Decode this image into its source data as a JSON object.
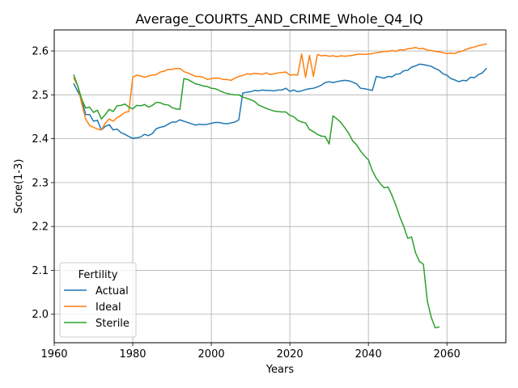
{
  "chart_data": {
    "type": "line",
    "title": "Average_COURTS_AND_CRIME_Whole_Q4_IQ",
    "xlabel": "Years",
    "ylabel": "Score(1-3)",
    "xlim": [
      1960,
      2075
    ],
    "ylim": [
      1.935,
      2.648
    ],
    "xticks": [
      1960,
      1980,
      2000,
      2020,
      2040,
      2060
    ],
    "yticks": [
      2.0,
      2.1,
      2.2,
      2.3,
      2.4,
      2.5,
      2.6
    ],
    "grid": true,
    "legend": {
      "title": "Fertility",
      "placement": "lower-left"
    },
    "series": [
      {
        "name": "Actual",
        "color": "#1f77b4",
        "points": [
          [
            1965,
            2.525
          ],
          [
            1967,
            2.49
          ],
          [
            1968,
            2.455
          ],
          [
            1969,
            2.455
          ],
          [
            1970,
            2.44
          ],
          [
            1971,
            2.442
          ],
          [
            1972,
            2.42
          ],
          [
            1973,
            2.428
          ],
          [
            1974,
            2.432
          ],
          [
            1975,
            2.42
          ],
          [
            1976,
            2.422
          ],
          [
            1977,
            2.414
          ],
          [
            1978,
            2.41
          ],
          [
            1979,
            2.405
          ],
          [
            1980,
            2.401
          ],
          [
            1981,
            2.402
          ],
          [
            1982,
            2.404
          ],
          [
            1983,
            2.41
          ],
          [
            1984,
            2.407
          ],
          [
            1985,
            2.412
          ],
          [
            1986,
            2.423
          ],
          [
            1987,
            2.426
          ],
          [
            1988,
            2.428
          ],
          [
            1989,
            2.433
          ],
          [
            1990,
            2.438
          ],
          [
            1991,
            2.438
          ],
          [
            1992,
            2.443
          ],
          [
            1993,
            2.44
          ],
          [
            1994,
            2.437
          ],
          [
            1995,
            2.434
          ],
          [
            1996,
            2.431
          ],
          [
            1997,
            2.433
          ],
          [
            1998,
            2.432
          ],
          [
            1999,
            2.433
          ],
          [
            2000,
            2.435
          ],
          [
            2001,
            2.437
          ],
          [
            2002,
            2.437
          ],
          [
            2003,
            2.435
          ],
          [
            2004,
            2.434
          ],
          [
            2005,
            2.436
          ],
          [
            2006,
            2.438
          ],
          [
            2007,
            2.443
          ],
          [
            2008,
            2.504
          ],
          [
            2009,
            2.506
          ],
          [
            2010,
            2.507
          ],
          [
            2011,
            2.51
          ],
          [
            2012,
            2.509
          ],
          [
            2013,
            2.511
          ],
          [
            2014,
            2.51
          ],
          [
            2015,
            2.51
          ],
          [
            2016,
            2.509
          ],
          [
            2017,
            2.511
          ],
          [
            2018,
            2.511
          ],
          [
            2019,
            2.515
          ],
          [
            2020,
            2.508
          ],
          [
            2021,
            2.511
          ],
          [
            2022,
            2.507
          ],
          [
            2023,
            2.509
          ],
          [
            2024,
            2.512
          ],
          [
            2025,
            2.514
          ],
          [
            2026,
            2.515
          ],
          [
            2027,
            2.518
          ],
          [
            2028,
            2.522
          ],
          [
            2029,
            2.528
          ],
          [
            2030,
            2.53
          ],
          [
            2031,
            2.528
          ],
          [
            2032,
            2.53
          ],
          [
            2033,
            2.532
          ],
          [
            2034,
            2.533
          ],
          [
            2035,
            2.532
          ],
          [
            2036,
            2.529
          ],
          [
            2037,
            2.525
          ],
          [
            2038,
            2.515
          ],
          [
            2039,
            2.514
          ],
          [
            2040,
            2.512
          ],
          [
            2041,
            2.51
          ],
          [
            2042,
            2.542
          ],
          [
            2043,
            2.54
          ],
          [
            2044,
            2.538
          ],
          [
            2045,
            2.542
          ],
          [
            2046,
            2.541
          ],
          [
            2047,
            2.547
          ],
          [
            2048,
            2.548
          ],
          [
            2049,
            2.555
          ],
          [
            2050,
            2.556
          ],
          [
            2051,
            2.563
          ],
          [
            2052,
            2.566
          ],
          [
            2053,
            2.57
          ],
          [
            2054,
            2.569
          ],
          [
            2055,
            2.567
          ],
          [
            2056,
            2.565
          ],
          [
            2057,
            2.56
          ],
          [
            2058,
            2.556
          ],
          [
            2059,
            2.548
          ],
          [
            2060,
            2.545
          ],
          [
            2061,
            2.537
          ],
          [
            2062,
            2.534
          ],
          [
            2063,
            2.53
          ],
          [
            2064,
            2.533
          ],
          [
            2065,
            2.532
          ],
          [
            2066,
            2.54
          ],
          [
            2067,
            2.539
          ],
          [
            2068,
            2.546
          ],
          [
            2069,
            2.55
          ],
          [
            2070,
            2.56
          ]
        ]
      },
      {
        "name": "Ideal",
        "color": "#ff7f0e",
        "points": [
          [
            1965,
            2.538
          ],
          [
            1966,
            2.52
          ],
          [
            1967,
            2.48
          ],
          [
            1968,
            2.445
          ],
          [
            1969,
            2.43
          ],
          [
            1970,
            2.426
          ],
          [
            1971,
            2.422
          ],
          [
            1972,
            2.42
          ],
          [
            1973,
            2.435
          ],
          [
            1974,
            2.445
          ],
          [
            1975,
            2.44
          ],
          [
            1976,
            2.448
          ],
          [
            1977,
            2.453
          ],
          [
            1978,
            2.46
          ],
          [
            1979,
            2.462
          ],
          [
            1980,
            2.54
          ],
          [
            1981,
            2.545
          ],
          [
            1982,
            2.543
          ],
          [
            1983,
            2.54
          ],
          [
            1984,
            2.543
          ],
          [
            1985,
            2.545
          ],
          [
            1986,
            2.546
          ],
          [
            1987,
            2.552
          ],
          [
            1988,
            2.554
          ],
          [
            1989,
            2.558
          ],
          [
            1990,
            2.558
          ],
          [
            1991,
            2.56
          ],
          [
            1992,
            2.56
          ],
          [
            1993,
            2.553
          ],
          [
            1994,
            2.55
          ],
          [
            1995,
            2.546
          ],
          [
            1996,
            2.542
          ],
          [
            1997,
            2.542
          ],
          [
            1998,
            2.54
          ],
          [
            1999,
            2.535
          ],
          [
            2000,
            2.537
          ],
          [
            2001,
            2.538
          ],
          [
            2002,
            2.538
          ],
          [
            2003,
            2.535
          ],
          [
            2004,
            2.535
          ],
          [
            2005,
            2.533
          ],
          [
            2006,
            2.538
          ],
          [
            2007,
            2.542
          ],
          [
            2008,
            2.544
          ],
          [
            2009,
            2.548
          ],
          [
            2010,
            2.547
          ],
          [
            2011,
            2.549
          ],
          [
            2012,
            2.548
          ],
          [
            2013,
            2.547
          ],
          [
            2014,
            2.55
          ],
          [
            2015,
            2.546
          ],
          [
            2016,
            2.548
          ],
          [
            2017,
            2.55
          ],
          [
            2018,
            2.551
          ],
          [
            2019,
            2.552
          ],
          [
            2020,
            2.545
          ],
          [
            2021,
            2.546
          ],
          [
            2022,
            2.545
          ],
          [
            2023,
            2.593
          ],
          [
            2024,
            2.54
          ],
          [
            2025,
            2.59
          ],
          [
            2026,
            2.542
          ],
          [
            2027,
            2.592
          ],
          [
            2028,
            2.589
          ],
          [
            2029,
            2.59
          ],
          [
            2030,
            2.588
          ],
          [
            2031,
            2.589
          ],
          [
            2032,
            2.587
          ],
          [
            2033,
            2.589
          ],
          [
            2034,
            2.588
          ],
          [
            2035,
            2.589
          ],
          [
            2036,
            2.59
          ],
          [
            2037,
            2.592
          ],
          [
            2038,
            2.593
          ],
          [
            2039,
            2.592
          ],
          [
            2040,
            2.593
          ],
          [
            2041,
            2.594
          ],
          [
            2042,
            2.596
          ],
          [
            2043,
            2.597
          ],
          [
            2044,
            2.599
          ],
          [
            2045,
            2.599
          ],
          [
            2046,
            2.601
          ],
          [
            2047,
            2.599
          ],
          [
            2048,
            2.603
          ],
          [
            2049,
            2.602
          ],
          [
            2050,
            2.605
          ],
          [
            2051,
            2.606
          ],
          [
            2052,
            2.608
          ],
          [
            2053,
            2.605
          ],
          [
            2054,
            2.606
          ],
          [
            2055,
            2.602
          ],
          [
            2056,
            2.601
          ],
          [
            2057,
            2.599
          ],
          [
            2058,
            2.598
          ],
          [
            2059,
            2.596
          ],
          [
            2060,
            2.594
          ],
          [
            2061,
            2.595
          ],
          [
            2062,
            2.594
          ],
          [
            2063,
            2.598
          ],
          [
            2064,
            2.6
          ],
          [
            2065,
            2.604
          ],
          [
            2066,
            2.607
          ],
          [
            2067,
            2.609
          ],
          [
            2068,
            2.612
          ],
          [
            2069,
            2.614
          ],
          [
            2070,
            2.616
          ]
        ]
      },
      {
        "name": "Sterile",
        "color": "#2ca02c",
        "points": [
          [
            1965,
            2.545
          ],
          [
            1966,
            2.52
          ],
          [
            1967,
            2.49
          ],
          [
            1968,
            2.47
          ],
          [
            1969,
            2.472
          ],
          [
            1970,
            2.46
          ],
          [
            1971,
            2.465
          ],
          [
            1972,
            2.445
          ],
          [
            1973,
            2.455
          ],
          [
            1974,
            2.467
          ],
          [
            1975,
            2.462
          ],
          [
            1976,
            2.475
          ],
          [
            1977,
            2.476
          ],
          [
            1978,
            2.479
          ],
          [
            1979,
            2.472
          ],
          [
            1980,
            2.468
          ],
          [
            1981,
            2.476
          ],
          [
            1982,
            2.475
          ],
          [
            1983,
            2.478
          ],
          [
            1984,
            2.472
          ],
          [
            1985,
            2.476
          ],
          [
            1986,
            2.483
          ],
          [
            1987,
            2.482
          ],
          [
            1988,
            2.478
          ],
          [
            1989,
            2.477
          ],
          [
            1990,
            2.471
          ],
          [
            1991,
            2.468
          ],
          [
            1992,
            2.467
          ],
          [
            1993,
            2.537
          ],
          [
            1994,
            2.535
          ],
          [
            1995,
            2.53
          ],
          [
            1996,
            2.525
          ],
          [
            1997,
            2.523
          ],
          [
            1998,
            2.52
          ],
          [
            1999,
            2.519
          ],
          [
            2000,
            2.515
          ],
          [
            2001,
            2.514
          ],
          [
            2002,
            2.51
          ],
          [
            2003,
            2.506
          ],
          [
            2004,
            2.503
          ],
          [
            2005,
            2.501
          ],
          [
            2006,
            2.5
          ],
          [
            2007,
            2.5
          ],
          [
            2008,
            2.495
          ],
          [
            2009,
            2.492
          ],
          [
            2010,
            2.489
          ],
          [
            2011,
            2.485
          ],
          [
            2012,
            2.477
          ],
          [
            2013,
            2.473
          ],
          [
            2014,
            2.469
          ],
          [
            2015,
            2.466
          ],
          [
            2016,
            2.463
          ],
          [
            2017,
            2.462
          ],
          [
            2018,
            2.461
          ],
          [
            2019,
            2.461
          ],
          [
            2020,
            2.453
          ],
          [
            2021,
            2.45
          ],
          [
            2022,
            2.442
          ],
          [
            2023,
            2.438
          ],
          [
            2024,
            2.436
          ],
          [
            2025,
            2.421
          ],
          [
            2026,
            2.416
          ],
          [
            2027,
            2.41
          ],
          [
            2028,
            2.406
          ],
          [
            2029,
            2.405
          ],
          [
            2030,
            2.388
          ],
          [
            2031,
            2.452
          ],
          [
            2032,
            2.445
          ],
          [
            2033,
            2.437
          ],
          [
            2034,
            2.425
          ],
          [
            2035,
            2.412
          ],
          [
            2036,
            2.395
          ],
          [
            2037,
            2.386
          ],
          [
            2038,
            2.372
          ],
          [
            2039,
            2.361
          ],
          [
            2040,
            2.352
          ],
          [
            2041,
            2.327
          ],
          [
            2042,
            2.31
          ],
          [
            2043,
            2.298
          ],
          [
            2044,
            2.288
          ],
          [
            2045,
            2.29
          ],
          [
            2046,
            2.271
          ],
          [
            2047,
            2.248
          ],
          [
            2048,
            2.222
          ],
          [
            2049,
            2.2
          ],
          [
            2050,
            2.173
          ],
          [
            2051,
            2.176
          ],
          [
            2052,
            2.14
          ],
          [
            2053,
            2.12
          ],
          [
            2054,
            2.114
          ],
          [
            2055,
            2.03
          ],
          [
            2056,
            1.993
          ],
          [
            2057,
            1.969
          ],
          [
            2058,
            1.971
          ]
        ]
      }
    ]
  }
}
